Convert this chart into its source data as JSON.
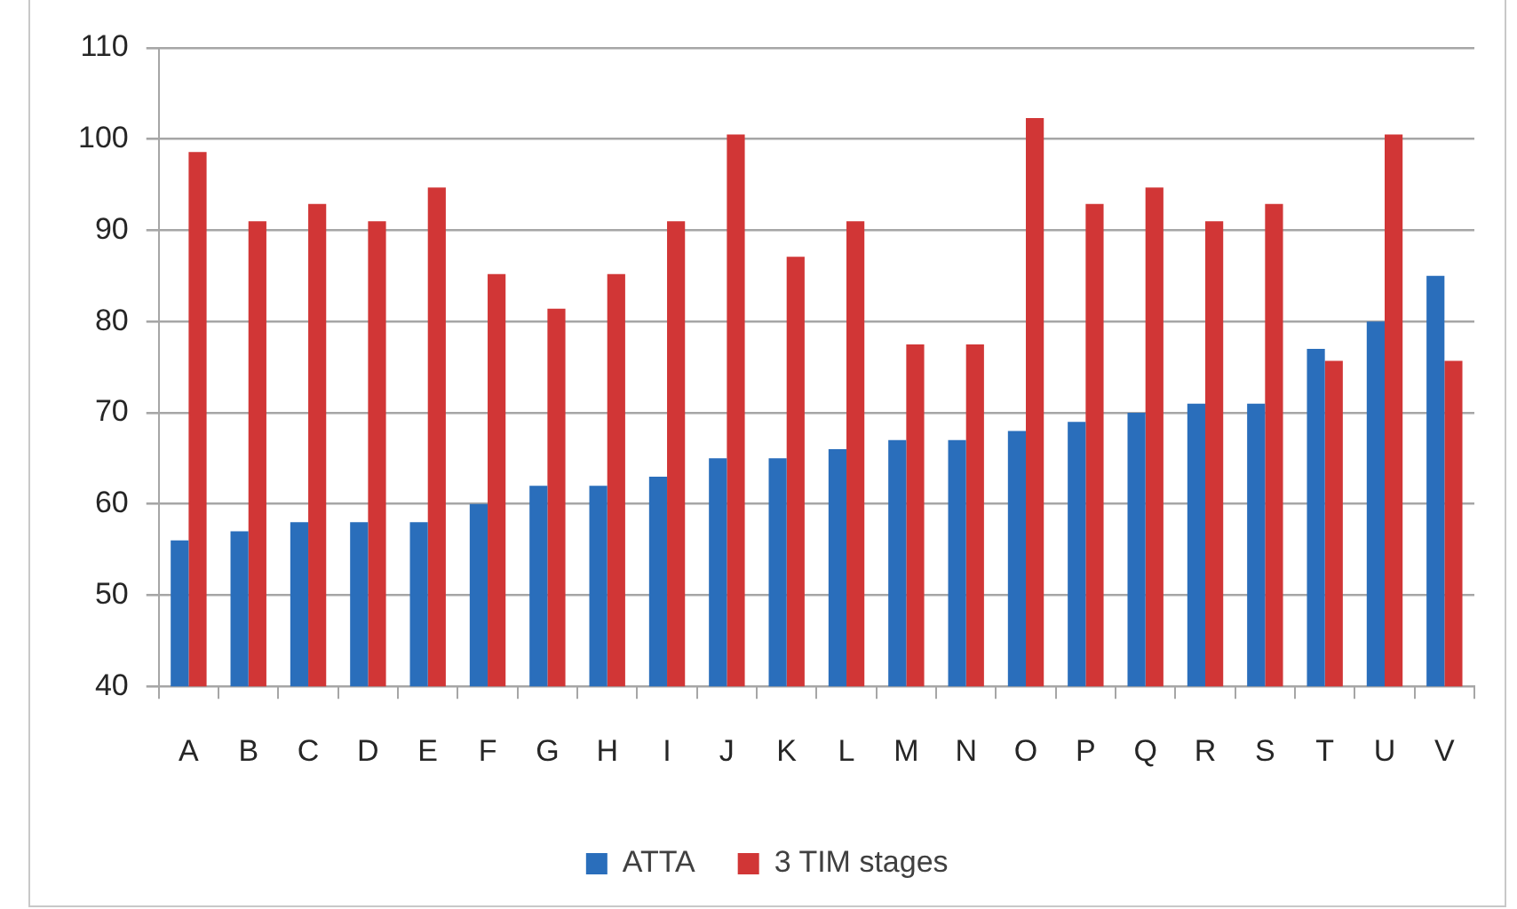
{
  "chart_data": {
    "type": "bar",
    "categories": [
      "A",
      "B",
      "C",
      "D",
      "E",
      "F",
      "G",
      "H",
      "I",
      "J",
      "K",
      "L",
      "M",
      "N",
      "O",
      "P",
      "Q",
      "R",
      "S",
      "T",
      "U",
      "V"
    ],
    "series": [
      {
        "name": "ATTA",
        "color": "#2a6ebb",
        "values": [
          56,
          57,
          58,
          58,
          58,
          60,
          62,
          62,
          63,
          65,
          65,
          66,
          67,
          67,
          68,
          69,
          70,
          71,
          71,
          77,
          80,
          85
        ]
      },
      {
        "name": "3 TIM stages",
        "color": "#d13636",
        "values": [
          98.6,
          91,
          92.9,
          91,
          94.7,
          85.2,
          81.4,
          85.2,
          91,
          100.5,
          87.1,
          91,
          77.5,
          77.5,
          102.3,
          92.9,
          94.7,
          91,
          92.9,
          75.7,
          100.5,
          75.7
        ]
      }
    ],
    "ylim": [
      40,
      110
    ],
    "yticks": [
      40,
      50,
      60,
      70,
      80,
      90,
      100,
      110
    ],
    "grid": "y",
    "legend": "bottom"
  }
}
